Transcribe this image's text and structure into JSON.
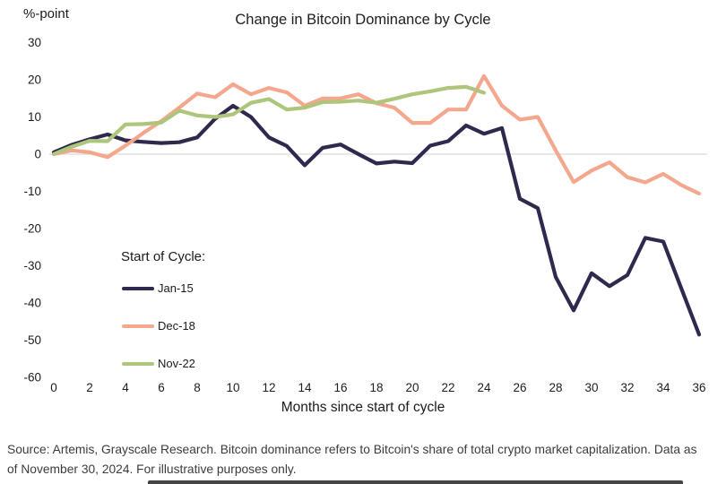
{
  "header": {
    "unit_label": "%-point"
  },
  "legend": {
    "heading": "Start of Cycle:"
  },
  "footer": {
    "source_text": "Source: Artemis, Grayscale Research. Bitcoin dominance refers to Bitcoin's share of total crypto market capitalization. Data as of November 30, 2024. For illustrative purposes only."
  },
  "chart_data": {
    "type": "line",
    "title": "Change in Bitcoin Dominance by Cycle",
    "xlabel": "Months since start of cycle",
    "ylabel": "%-point",
    "xlim": [
      0,
      36
    ],
    "ylim": [
      -60,
      30
    ],
    "x_ticks": [
      0,
      2,
      4,
      6,
      8,
      10,
      12,
      14,
      16,
      18,
      20,
      22,
      24,
      26,
      28,
      30,
      32,
      34,
      36
    ],
    "y_ticks": [
      30,
      20,
      10,
      0,
      -10,
      -20,
      -30,
      -40,
      -50,
      -60
    ],
    "grid": "zero-line-only",
    "zero_line_color": "#d9d9d9",
    "legend_position": "inside-lower-left",
    "series": [
      {
        "name": "Jan-15",
        "color": "#2d2a4e",
        "start_month": 0,
        "values": [
          0.5,
          2.5,
          4,
          5.3,
          3.7,
          3.3,
          3,
          3.2,
          4.5,
          9.5,
          13,
          10,
          4.5,
          2.2,
          -3,
          1.7,
          2.6,
          0,
          -2.5,
          -2,
          -2.4,
          2.3,
          3.5,
          7.7,
          5.5,
          7,
          -12,
          -14.5,
          -33,
          -42,
          -32,
          -35.5,
          -32.5,
          -22.5,
          -23.5,
          -36,
          -48.5
        ]
      },
      {
        "name": "Dec-18",
        "color": "#f5a78e",
        "start_month": 0,
        "values": [
          0,
          1,
          0.5,
          -0.8,
          2.3,
          5.7,
          8.9,
          12.5,
          16.3,
          15.3,
          18.8,
          16.1,
          17.8,
          16.6,
          13,
          15,
          15,
          16.1,
          13.7,
          12.5,
          8.4,
          8.4,
          12,
          12,
          21,
          13,
          9.3,
          10,
          1,
          -7.5,
          -4.4,
          -2.2,
          -6.2,
          -7.6,
          -5.3,
          -8.3,
          -10.6
        ]
      },
      {
        "name": "Nov-22",
        "color": "#aec57c",
        "start_month": 0,
        "values": [
          0,
          2,
          3.6,
          3.5,
          8,
          8.1,
          8.5,
          11.7,
          10.4,
          10,
          10.7,
          13.8,
          14.8,
          12,
          12.5,
          14,
          14.1,
          14.4,
          13.8,
          14.9,
          16.1,
          16.9,
          17.8,
          18.1,
          16.5
        ]
      }
    ]
  }
}
